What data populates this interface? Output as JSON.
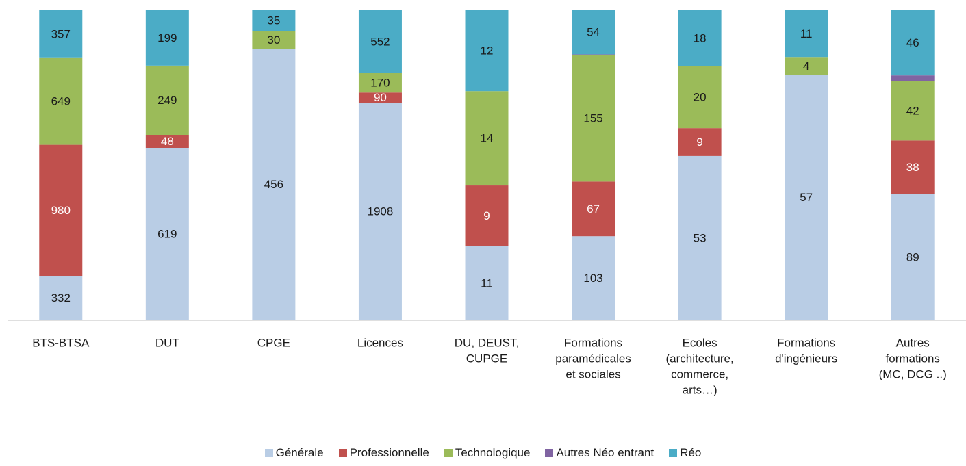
{
  "chart_data": {
    "type": "stacked_bar_100",
    "categories": [
      [
        "BTS-BTSA"
      ],
      [
        "DUT"
      ],
      [
        "CPGE"
      ],
      [
        "Licences"
      ],
      [
        "DU, DEUST,",
        "CUPGE"
      ],
      [
        "Formations",
        "paramédicales",
        "et sociales"
      ],
      [
        "Ecoles",
        "(architecture,",
        "commerce,",
        "arts…)"
      ],
      [
        "Formations",
        "d'ingénieurs"
      ],
      [
        "Autres",
        "formations",
        "(MC, DCG ..)"
      ]
    ],
    "series": [
      {
        "name": "Générale",
        "color": "#b9cde5",
        "label_color": "#1a1a1a",
        "values": [
          332,
          619,
          456,
          1908,
          11,
          103,
          53,
          57,
          89
        ]
      },
      {
        "name": "Professionnelle",
        "color": "#c0504d",
        "label_color": "#ffffff",
        "values": [
          980,
          48,
          null,
          90,
          9,
          67,
          9,
          null,
          38
        ]
      },
      {
        "name": "Technologique",
        "color": "#9bbb59",
        "label_color": "#1a1a1a",
        "values": [
          649,
          249,
          30,
          170,
          14,
          155,
          20,
          4,
          42
        ]
      },
      {
        "name": "Autres Néo entrant",
        "color": "#8064a2",
        "labels": false,
        "values": [
          null,
          null,
          null,
          null,
          null,
          1,
          null,
          null,
          4
        ]
      },
      {
        "name": "Réo",
        "color": "#4bacc6",
        "label_color": "#1a1a1a",
        "values": [
          357,
          199,
          35,
          552,
          12,
          54,
          18,
          11,
          46
        ]
      }
    ],
    "legend": "bottom"
  }
}
